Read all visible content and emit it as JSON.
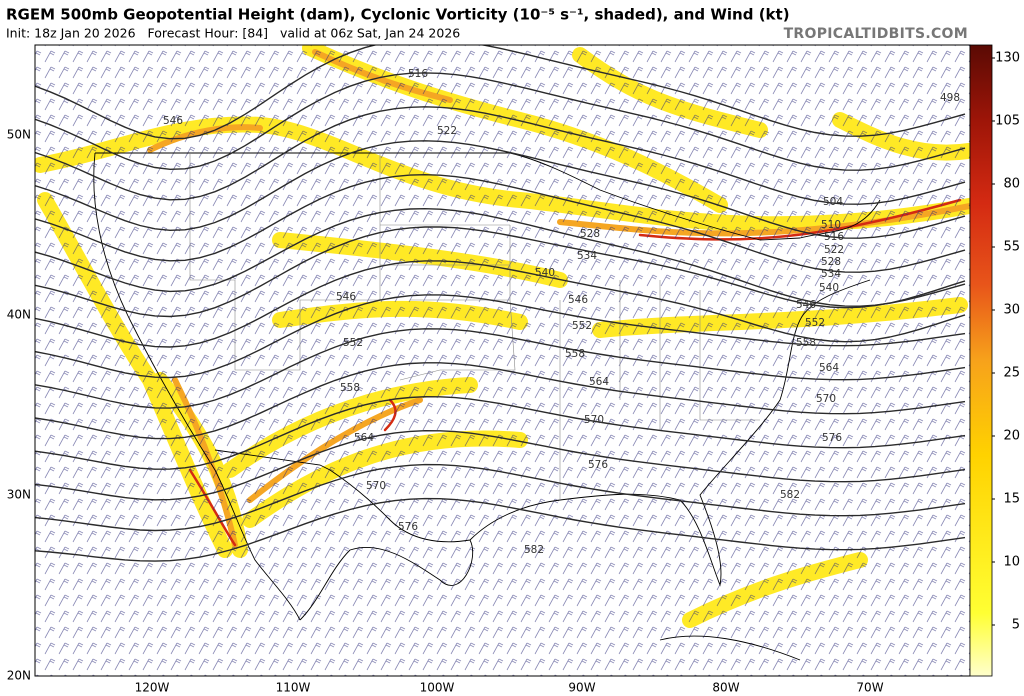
{
  "header": {
    "title": "RGEM 500mb Geopotential Height (dam), Cyclonic Vorticity (10⁻⁵ s⁻¹, shaded), and Wind (kt)",
    "subtitle": "Init: 18z Jan 20 2026   Forecast Hour: [84]   valid at 06z Sat, Jan 24 2026",
    "watermark": "TROPICALTIDBITS.COM"
  },
  "colorbar": {
    "labels": [
      130,
      105,
      80,
      55,
      30,
      25,
      20,
      15,
      10,
      5
    ]
  },
  "latitude_labels": [
    "50N",
    "40N",
    "30N",
    "20N"
  ],
  "longitude_labels": [
    "120W",
    "110W",
    "100W",
    "90W",
    "80W",
    "70W"
  ],
  "contour_labels": [
    498,
    516,
    522,
    546,
    504,
    510,
    516,
    522,
    528,
    528,
    534,
    534,
    540,
    540,
    546,
    546,
    546,
    552,
    552,
    552,
    558,
    558,
    558,
    564,
    564,
    564,
    570,
    570,
    570,
    576,
    576,
    576,
    582,
    582
  ]
}
